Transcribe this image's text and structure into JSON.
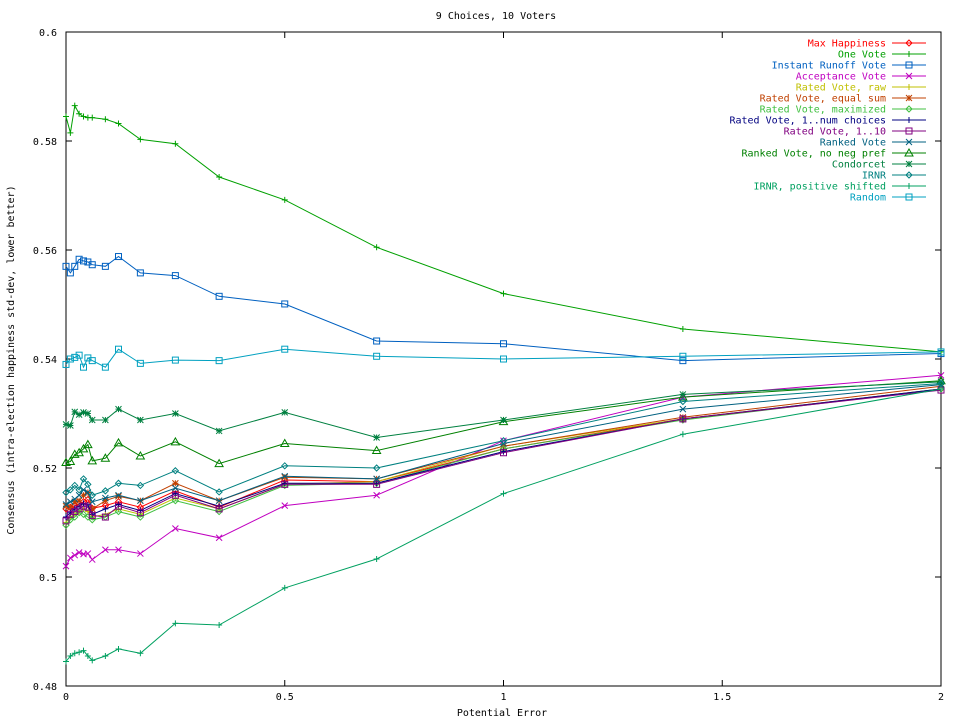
{
  "chart_data": {
    "type": "line",
    "title": "9 Choices, 10 Voters",
    "xlabel": "Potential Error",
    "ylabel": "Consensus (intra-election happiness std-dev, lower better)",
    "xlim": [
      0,
      2
    ],
    "ylim": [
      0.48,
      0.6
    ],
    "xticks": [
      {
        "value": 0,
        "label": "0"
      },
      {
        "value": 0.5,
        "label": "0.5"
      },
      {
        "value": 1,
        "label": "1"
      },
      {
        "value": 1.5,
        "label": "1.5"
      },
      {
        "value": 2,
        "label": "2"
      }
    ],
    "yticks": [
      {
        "value": 0.48,
        "label": "0.48"
      },
      {
        "value": 0.5,
        "label": "0.5"
      },
      {
        "value": 0.52,
        "label": "0.52"
      },
      {
        "value": 0.54,
        "label": "0.54"
      },
      {
        "value": 0.56,
        "label": "0.56"
      },
      {
        "value": 0.58,
        "label": "0.58"
      },
      {
        "value": 0.6,
        "label": "0.6"
      }
    ],
    "grid": false,
    "legend_position": "top-right",
    "x": [
      0,
      0.01,
      0.02,
      0.03,
      0.04,
      0.05,
      0.06,
      0.09,
      0.12,
      0.17,
      0.25,
      0.35,
      0.5,
      0.71,
      1,
      1.41,
      2
    ],
    "series": [
      {
        "name": "Max Happiness",
        "color": "#ff0000",
        "marker": "diamond",
        "values": [
          0.5125,
          0.5128,
          0.5131,
          0.5134,
          0.5138,
          0.5142,
          0.5126,
          0.5131,
          0.5138,
          0.5128,
          0.5158,
          0.5128,
          0.5178,
          0.5175,
          0.5235,
          0.529,
          0.5345
        ]
      },
      {
        "name": "One Vote",
        "color": "#00a000",
        "marker": "plus",
        "values": [
          0.5845,
          0.5815,
          0.5865,
          0.585,
          0.5845,
          0.5843,
          0.5843,
          0.584,
          0.5832,
          0.5803,
          0.5795,
          0.5734,
          0.5692,
          0.5605,
          0.552,
          0.5455,
          0.5413
        ]
      },
      {
        "name": "Instant Runoff Vote",
        "color": "#0060c0",
        "marker": "square",
        "values": [
          0.557,
          0.5558,
          0.557,
          0.5583,
          0.558,
          0.5578,
          0.5573,
          0.557,
          0.5588,
          0.5558,
          0.5553,
          0.5515,
          0.5501,
          0.5433,
          0.5428,
          0.5397,
          0.541
        ]
      },
      {
        "name": "Acceptance Vote",
        "color": "#c000c0",
        "marker": "x",
        "values": [
          0.502,
          0.5035,
          0.504,
          0.5045,
          0.5042,
          0.5043,
          0.5032,
          0.505,
          0.505,
          0.5043,
          0.5089,
          0.5072,
          0.5131,
          0.515,
          0.525,
          0.533,
          0.537
        ]
      },
      {
        "name": "Rated Vote, raw",
        "color": "#c0c000",
        "marker": "plus",
        "values": [
          0.51,
          0.511,
          0.5115,
          0.512,
          0.5125,
          0.512,
          0.511,
          0.5115,
          0.5125,
          0.5115,
          0.5145,
          0.5125,
          0.517,
          0.5175,
          0.524,
          0.529,
          0.5345
        ]
      },
      {
        "name": "Rated Vote, equal sum",
        "color": "#c04000",
        "marker": "star",
        "values": [
          0.513,
          0.5128,
          0.5138,
          0.514,
          0.515,
          0.5155,
          0.5125,
          0.514,
          0.5148,
          0.514,
          0.5172,
          0.514,
          0.5183,
          0.518,
          0.524,
          0.5293,
          0.535
        ]
      },
      {
        "name": "Rated Vote, maximized",
        "color": "#40c040",
        "marker": "diamond",
        "values": [
          0.5095,
          0.5105,
          0.511,
          0.5118,
          0.5115,
          0.511,
          0.5105,
          0.511,
          0.512,
          0.511,
          0.514,
          0.512,
          0.5168,
          0.5172,
          0.5235,
          0.5288,
          0.5345
        ]
      },
      {
        "name": "Rated Vote, 1..num choices",
        "color": "#000080",
        "marker": "plus",
        "values": [
          0.511,
          0.5118,
          0.5125,
          0.513,
          0.5135,
          0.5132,
          0.5115,
          0.5125,
          0.5133,
          0.5122,
          0.5153,
          0.513,
          0.5172,
          0.5172,
          0.523,
          0.529,
          0.5345
        ]
      },
      {
        "name": "Rated Vote, 1..10",
        "color": "#800080",
        "marker": "square",
        "values": [
          0.5103,
          0.5115,
          0.512,
          0.5125,
          0.513,
          0.5128,
          0.5113,
          0.511,
          0.513,
          0.5118,
          0.515,
          0.5125,
          0.517,
          0.517,
          0.5228,
          0.529,
          0.5343
        ]
      },
      {
        "name": "Ranked Vote",
        "color": "#006080",
        "marker": "x",
        "values": [
          0.5133,
          0.5138,
          0.5143,
          0.515,
          0.516,
          0.5155,
          0.5138,
          0.5145,
          0.515,
          0.514,
          0.5163,
          0.514,
          0.5185,
          0.518,
          0.5245,
          0.5308,
          0.5353
        ]
      },
      {
        "name": "Ranked Vote, no neg pref",
        "color": "#008000",
        "marker": "triangle",
        "values": [
          0.521,
          0.5212,
          0.5225,
          0.5228,
          0.5235,
          0.5243,
          0.5213,
          0.5218,
          0.5246,
          0.5222,
          0.5248,
          0.5208,
          0.5245,
          0.5232,
          0.5285,
          0.533,
          0.536
        ]
      },
      {
        "name": "Condorcet",
        "color": "#008040",
        "marker": "star",
        "values": [
          0.528,
          0.5278,
          0.5303,
          0.5298,
          0.5302,
          0.53,
          0.5288,
          0.5288,
          0.5308,
          0.5288,
          0.53,
          0.5268,
          0.5302,
          0.5256,
          0.5288,
          0.5335,
          0.5358
        ]
      },
      {
        "name": "IRNR",
        "color": "#008080",
        "marker": "diamond",
        "values": [
          0.5155,
          0.516,
          0.5168,
          0.516,
          0.518,
          0.517,
          0.515,
          0.5158,
          0.5172,
          0.5168,
          0.5195,
          0.5156,
          0.5204,
          0.52,
          0.525,
          0.5322,
          0.5355
        ]
      },
      {
        "name": "IRNR, positive shifted",
        "color": "#00a060",
        "marker": "plus",
        "values": [
          0.4845,
          0.4855,
          0.486,
          0.4862,
          0.4865,
          0.4855,
          0.4847,
          0.4855,
          0.4868,
          0.486,
          0.4915,
          0.4912,
          0.498,
          0.5033,
          0.5153,
          0.5262,
          0.5345
        ]
      },
      {
        "name": "Random",
        "color": "#00a0c0",
        "marker": "square",
        "values": [
          0.539,
          0.54,
          0.5403,
          0.5407,
          0.5385,
          0.5402,
          0.5397,
          0.5385,
          0.5418,
          0.5392,
          0.5398,
          0.5397,
          0.5418,
          0.5405,
          0.54,
          0.5405,
          0.5413
        ]
      }
    ]
  }
}
